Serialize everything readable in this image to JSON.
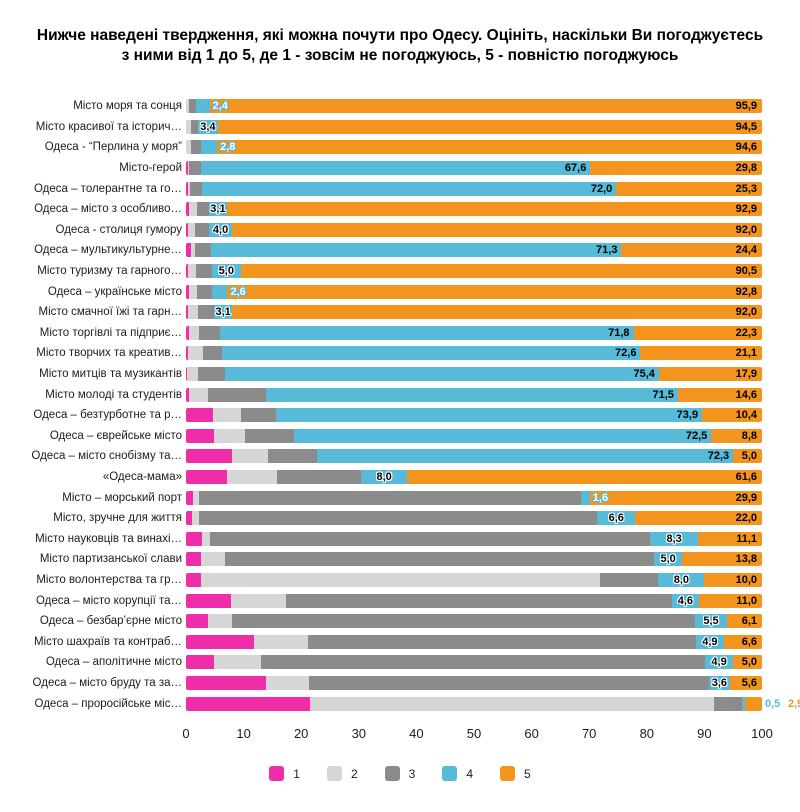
{
  "chart_data": {
    "type": "bar",
    "stacked": true,
    "orientation": "horizontal",
    "title": "Нижче наведені твердження, які можна почути про Одесу. Оцініть, наскільки Ви погоджуєтесь з ними від 1 до 5, де 1 - зовсім не погоджуюсь, 5 - повністю погоджуюсь",
    "series_names": [
      "1",
      "2",
      "3",
      "4",
      "5"
    ],
    "colors": {
      "1": "#F02DA9",
      "2": "#D6D6D6",
      "3": "#8B8B8B",
      "4": "#58BAD9",
      "5": "#F3941F"
    },
    "x_axis": {
      "range": [
        0,
        100
      ],
      "ticks": [
        0,
        10,
        20,
        30,
        40,
        50,
        60,
        70,
        80,
        90,
        100
      ]
    },
    "legend": {
      "position": "bottom",
      "entries": [
        "1",
        "2",
        "3",
        "4",
        "5"
      ]
    },
    "rows": [
      {
        "label": "Місто моря та сонця",
        "values": [
          0,
          0.6,
          1.1,
          2.4,
          95.9
        ],
        "label4": {
          "text": "2,4",
          "mode": "outline"
        },
        "label5": {
          "text": "95,9",
          "mode": "inside"
        }
      },
      {
        "label": "Місто красивої та історич…",
        "values": [
          0,
          0.8,
          1.3,
          3.4,
          94.5
        ],
        "label4": {
          "text": "3,4",
          "mode": "halo"
        },
        "label5": {
          "text": "94,5",
          "mode": "inside"
        }
      },
      {
        "label": "Одеса - “Перлина у моря”",
        "values": [
          0,
          0.9,
          1.7,
          2.8,
          94.6
        ],
        "label4": {
          "text": "2,8",
          "mode": "outline"
        },
        "label5": {
          "text": "94,6",
          "mode": "inside"
        }
      },
      {
        "label": "Місто-герой",
        "values": [
          0.3,
          0.3,
          2.0,
          67.6,
          29.8
        ],
        "label4": {
          "text": "67,6",
          "mode": "inside"
        },
        "label5": {
          "text": "29,8",
          "mode": "inside"
        }
      },
      {
        "label": "Одеса – толерантне та го…",
        "values": [
          0.3,
          0.4,
          2.0,
          72.0,
          25.3
        ],
        "label4": {
          "text": "72,0",
          "mode": "inside"
        },
        "label5": {
          "text": "25,3",
          "mode": "inside"
        }
      },
      {
        "label": "Одеса – місто з особливо…",
        "values": [
          0.6,
          1.3,
          2.1,
          3.1,
          92.9
        ],
        "label4": {
          "text": "3,1",
          "mode": "halo"
        },
        "label5": {
          "text": "92,9",
          "mode": "inside"
        }
      },
      {
        "label": "Одеса - столиця гумору",
        "values": [
          0.4,
          1.2,
          2.4,
          4.0,
          92.0
        ],
        "label4": {
          "text": "4,0",
          "mode": "halo"
        },
        "label5": {
          "text": "92,0",
          "mode": "inside"
        }
      },
      {
        "label": "Одеса – мультикультурне…",
        "values": [
          0.8,
          0.7,
          2.8,
          71.3,
          24.4
        ],
        "label4": {
          "text": "71,3",
          "mode": "inside"
        },
        "label5": {
          "text": "24,4",
          "mode": "inside"
        }
      },
      {
        "label": "Місто туризму та гарного…",
        "values": [
          0.4,
          1.3,
          2.8,
          5.0,
          90.5
        ],
        "label4": {
          "text": "5,0",
          "mode": "halo"
        },
        "label5": {
          "text": "90,5",
          "mode": "inside"
        }
      },
      {
        "label": "Одеса – українське місто",
        "values": [
          0.5,
          1.4,
          2.7,
          2.6,
          92.8
        ],
        "label4": {
          "text": "2,6",
          "mode": "outline"
        },
        "label5": {
          "text": "92,8",
          "mode": "inside"
        }
      },
      {
        "label": "Місто смачної їжі та гарн…",
        "values": [
          0.4,
          1.6,
          2.9,
          3.1,
          92.0
        ],
        "label4": {
          "text": "3,1",
          "mode": "halo"
        },
        "label5": {
          "text": "92,0",
          "mode": "inside"
        }
      },
      {
        "label": "Місто торгівлі та підприє…",
        "values": [
          0.5,
          1.7,
          3.7,
          71.8,
          22.3
        ],
        "label4": {
          "text": "71,8",
          "mode": "inside"
        },
        "label5": {
          "text": "22,3",
          "mode": "inside"
        }
      },
      {
        "label": "Місто творчих та креатив…",
        "values": [
          0.4,
          2.5,
          3.4,
          72.6,
          21.1
        ],
        "label4": {
          "text": "72,6",
          "mode": "inside"
        },
        "label5": {
          "text": "21,1",
          "mode": "inside"
        }
      },
      {
        "label": "Місто митців та музикантів",
        "values": [
          0.2,
          1.8,
          4.7,
          75.4,
          17.9
        ],
        "label4": {
          "text": "75,4",
          "mode": "inside"
        },
        "label5": {
          "text": "17,9",
          "mode": "inside"
        }
      },
      {
        "label": "Місто молоді та студентів",
        "values": [
          0.6,
          3.2,
          10.1,
          71.5,
          14.6
        ],
        "label4": {
          "text": "71,5",
          "mode": "inside"
        },
        "label5": {
          "text": "14,6",
          "mode": "inside"
        }
      },
      {
        "label": "Одеса – безтурботне та р…",
        "values": [
          4.7,
          4.8,
          6.2,
          73.9,
          10.4
        ],
        "label4": {
          "text": "73,9",
          "mode": "inside"
        },
        "label5": {
          "text": "10,4",
          "mode": "inside"
        }
      },
      {
        "label": "Одеса – єврейське місто",
        "values": [
          4.8,
          5.5,
          8.4,
          72.5,
          8.8
        ],
        "label4": {
          "text": "72,5",
          "mode": "inside"
        },
        "label5": {
          "text": "8,8",
          "mode": "inside"
        }
      },
      {
        "label": "Одеса – місто снобізму та…",
        "values": [
          8.0,
          6.3,
          8.4,
          72.3,
          5.0
        ],
        "label4": {
          "text": "72,3",
          "mode": "inside"
        },
        "label5": {
          "text": "5,0",
          "mode": "inside"
        }
      },
      {
        "label": "«Одеса-мама»",
        "values": [
          7.2,
          8.6,
          14.6,
          8.0,
          61.6
        ],
        "label4": {
          "text": "8,0",
          "mode": "halo"
        },
        "label5": {
          "text": "61,6",
          "mode": "inside"
        }
      },
      {
        "label": "Місто – морський порт",
        "values": [
          1.3,
          0.9,
          66.3,
          1.6,
          29.9
        ],
        "label4": {
          "text": "1,6",
          "mode": "outline"
        },
        "label5": {
          "text": "29,9",
          "mode": "inside"
        }
      },
      {
        "label": "Місто, зручне для життя",
        "values": [
          1.1,
          1.2,
          69.1,
          6.6,
          22.0
        ],
        "label4": {
          "text": "6,6",
          "mode": "halo"
        },
        "label5": {
          "text": "22,0",
          "mode": "inside"
        }
      },
      {
        "label": "Місто науковців та винахі…",
        "values": [
          2.7,
          1.4,
          76.5,
          8.3,
          11.1
        ],
        "label4": {
          "text": "8,3",
          "mode": "halo"
        },
        "label5": {
          "text": "11,1",
          "mode": "inside"
        }
      },
      {
        "label": "Місто партизанської слави",
        "values": [
          2.6,
          4.2,
          74.4,
          5.0,
          13.8
        ],
        "label4": {
          "text": "5,0",
          "mode": "halo"
        },
        "label5": {
          "text": "13,8",
          "mode": "inside"
        }
      },
      {
        "label": "Місто волонтерства та гр…",
        "values": [
          2.6,
          69.2,
          10.2,
          8.0,
          10.0
        ],
        "label4": {
          "text": "8,0",
          "mode": "halo"
        },
        "label5": {
          "text": "10,0",
          "mode": "inside"
        }
      },
      {
        "label": "Одеса – місто корупції та…",
        "values": [
          7.8,
          9.5,
          67.1,
          4.6,
          11.0
        ],
        "label4": {
          "text": "4,6",
          "mode": "halo"
        },
        "label5": {
          "text": "11,0",
          "mode": "inside"
        }
      },
      {
        "label": "Одеса – безбар’єрне місто",
        "values": [
          3.8,
          4.2,
          80.4,
          5.5,
          6.1
        ],
        "label4": {
          "text": "5,5",
          "mode": "halo"
        },
        "label5": {
          "text": "6,1",
          "mode": "inside"
        }
      },
      {
        "label": "Місто шахраїв та контраб…",
        "values": [
          11.8,
          9.4,
          67.3,
          4.9,
          6.6
        ],
        "label4": {
          "text": "4,9",
          "mode": "halo"
        },
        "label5": {
          "text": "6,6",
          "mode": "inside"
        }
      },
      {
        "label": "Одеса – аполітичне місто",
        "values": [
          4.9,
          8.2,
          77.0,
          4.9,
          5.0
        ],
        "label4": {
          "text": "4,9",
          "mode": "halo"
        },
        "label5": {
          "text": "5,0",
          "mode": "inside"
        }
      },
      {
        "label": "Одеса – місто бруду та за…",
        "values": [
          13.9,
          7.5,
          69.4,
          3.6,
          5.6
        ],
        "label4": {
          "text": "3,6",
          "mode": "halo"
        },
        "label5": {
          "text": "5,6",
          "mode": "inside"
        }
      },
      {
        "label": "Одеса – проросійське міс…",
        "values": [
          21.5,
          70.1,
          5.0,
          0.5,
          2.9
        ],
        "label4": {
          "text": "0,5",
          "mode": "out"
        },
        "label5": {
          "text": "2,9",
          "mode": "out"
        }
      }
    ]
  }
}
